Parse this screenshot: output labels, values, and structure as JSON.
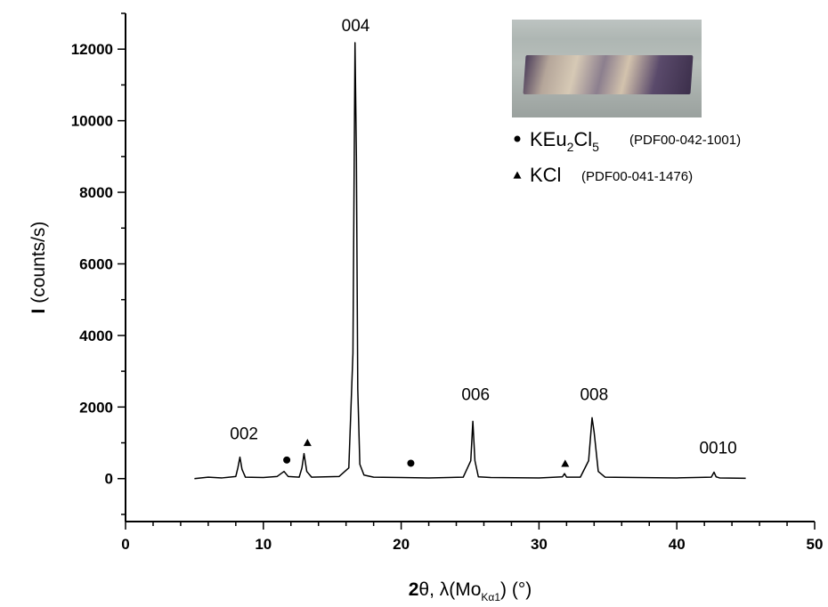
{
  "chart_data": {
    "type": "line",
    "xlabel": "2θ, λ(Mo",
    "xlabel_sub": "Kα1",
    "xlabel_suffix": ") (°)",
    "ylabel": "I (counts/s)",
    "xlim": [
      0,
      50
    ],
    "ylim": [
      -1200,
      13000
    ],
    "x_ticks": [
      0,
      10,
      20,
      30,
      40,
      50
    ],
    "y_ticks": [
      0,
      2000,
      4000,
      6000,
      8000,
      10000,
      12000
    ],
    "grid": false,
    "series": [
      {
        "x": [
          5.0,
          6.0,
          7.0,
          8.0,
          8.15,
          8.3,
          8.45,
          8.7,
          10.0,
          11.0,
          11.5,
          11.8,
          12.6,
          12.8,
          12.95,
          13.15,
          13.5,
          15.5,
          16.2,
          16.5,
          16.65,
          16.75,
          16.85,
          17.0,
          17.3,
          18.0,
          20.0,
          22.0,
          24.5,
          25.05,
          25.2,
          25.35,
          25.6,
          26.5,
          30.0,
          31.7,
          31.85,
          32.0,
          33.0,
          33.6,
          33.85,
          34.0,
          34.3,
          34.8,
          37.0,
          40.0,
          42.5,
          42.7,
          42.85,
          43.1,
          45.0
        ],
        "y": [
          0,
          40,
          20,
          60,
          300,
          600,
          260,
          40,
          30,
          60,
          200,
          60,
          40,
          300,
          700,
          200,
          40,
          60,
          300,
          3500,
          12180,
          9000,
          2500,
          400,
          100,
          40,
          30,
          20,
          40,
          500,
          1600,
          500,
          50,
          30,
          20,
          50,
          140,
          40,
          40,
          500,
          1700,
          1300,
          200,
          40,
          30,
          20,
          40,
          180,
          50,
          20,
          10
        ]
      }
    ],
    "annotations": [
      {
        "text": "004",
        "x": 16.7,
        "y": 12500
      },
      {
        "text": "002",
        "x": 8.6,
        "y": 1100
      },
      {
        "text": "006",
        "x": 25.4,
        "y": 2200
      },
      {
        "text": "008",
        "x": 34.0,
        "y": 2200
      },
      {
        "text": "0010",
        "x": 43.0,
        "y": 700
      }
    ],
    "markers": [
      {
        "shape": "circle",
        "x": 11.7,
        "y": 520
      },
      {
        "shape": "circle",
        "x": 20.7,
        "y": 430
      },
      {
        "shape": "triangle",
        "x": 13.2,
        "y": 1000
      },
      {
        "shape": "triangle",
        "x": 31.9,
        "y": 420
      }
    ],
    "legend": {
      "placement": "top-right",
      "entries": [
        {
          "symbol": "circle",
          "main": "KEu",
          "sub1": "2",
          "main2": "Cl",
          "sub2": "5",
          "ref": "(PDF00-042-1001)"
        },
        {
          "symbol": "triangle",
          "main": "KCl",
          "ref": "(PDF00-041-1476)"
        }
      ]
    },
    "colors": {
      "line": "#000000",
      "axis": "#000000"
    }
  }
}
